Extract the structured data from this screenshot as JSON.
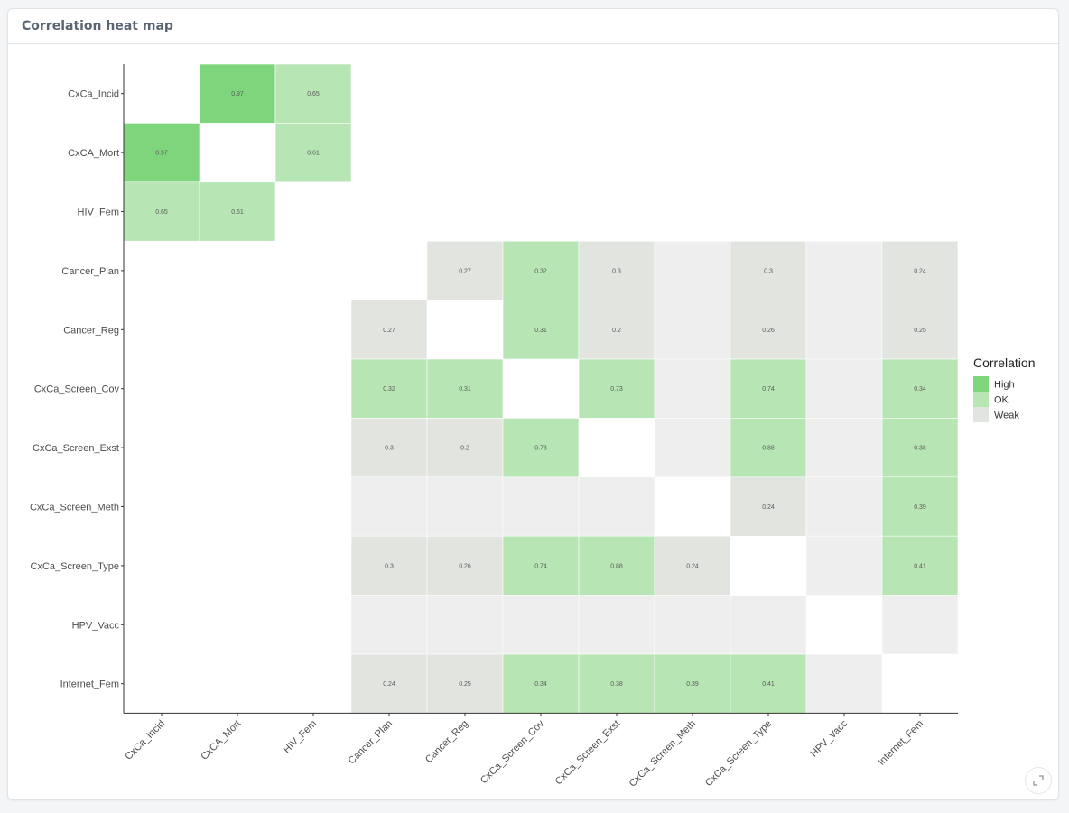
{
  "card": {
    "title": "Correlation heat map"
  },
  "chart_data": {
    "type": "heatmap",
    "variables": [
      "CxCa_Incid",
      "CxCA_Mort",
      "HIV_Fem",
      "Cancer_Plan",
      "Cancer_Reg",
      "CxCa_Screen_Cov",
      "CxCa_Screen_Exst",
      "CxCa_Screen_Meth",
      "CxCa_Screen_Type",
      "HPV_Vacc",
      "Internet_Fem"
    ],
    "legend": {
      "title": "Correlation",
      "position": "right",
      "levels": [
        {
          "label": "High",
          "color": "#7fd57c"
        },
        {
          "label": "OK",
          "color": "#b7e6b4"
        },
        {
          "label": "Weak",
          "color": "#e2e4e0"
        }
      ],
      "unlabeled_color": "#eeeeee"
    },
    "cells": [
      {
        "row": "CxCa_Incid",
        "col": "CxCA_Mort",
        "value": 0.97,
        "level": "High"
      },
      {
        "row": "CxCa_Incid",
        "col": "HIV_Fem",
        "value": 0.65,
        "level": "OK"
      },
      {
        "row": "CxCA_Mort",
        "col": "CxCa_Incid",
        "value": 0.97,
        "level": "High"
      },
      {
        "row": "CxCA_Mort",
        "col": "HIV_Fem",
        "value": 0.61,
        "level": "OK"
      },
      {
        "row": "HIV_Fem",
        "col": "CxCa_Incid",
        "value": 0.65,
        "level": "OK"
      },
      {
        "row": "HIV_Fem",
        "col": "CxCA_Mort",
        "value": 0.61,
        "level": "OK"
      },
      {
        "row": "Cancer_Plan",
        "col": "Cancer_Reg",
        "value": 0.27,
        "level": "Weak"
      },
      {
        "row": "Cancer_Plan",
        "col": "CxCa_Screen_Cov",
        "value": 0.32,
        "level": "OK"
      },
      {
        "row": "Cancer_Plan",
        "col": "CxCa_Screen_Exst",
        "value": 0.3,
        "level": "Weak"
      },
      {
        "row": "Cancer_Plan",
        "col": "CxCa_Screen_Meth",
        "value": null,
        "level": null
      },
      {
        "row": "Cancer_Plan",
        "col": "CxCa_Screen_Type",
        "value": 0.3,
        "level": "Weak"
      },
      {
        "row": "Cancer_Plan",
        "col": "HPV_Vacc",
        "value": null,
        "level": null
      },
      {
        "row": "Cancer_Plan",
        "col": "Internet_Fem",
        "value": 0.24,
        "level": "Weak"
      },
      {
        "row": "Cancer_Reg",
        "col": "Cancer_Plan",
        "value": 0.27,
        "level": "Weak"
      },
      {
        "row": "Cancer_Reg",
        "col": "CxCa_Screen_Cov",
        "value": 0.31,
        "level": "OK"
      },
      {
        "row": "Cancer_Reg",
        "col": "CxCa_Screen_Exst",
        "value": 0.2,
        "level": "Weak"
      },
      {
        "row": "Cancer_Reg",
        "col": "CxCa_Screen_Meth",
        "value": null,
        "level": null
      },
      {
        "row": "Cancer_Reg",
        "col": "CxCa_Screen_Type",
        "value": 0.26,
        "level": "Weak"
      },
      {
        "row": "Cancer_Reg",
        "col": "HPV_Vacc",
        "value": null,
        "level": null
      },
      {
        "row": "Cancer_Reg",
        "col": "Internet_Fem",
        "value": 0.25,
        "level": "Weak"
      },
      {
        "row": "CxCa_Screen_Cov",
        "col": "Cancer_Plan",
        "value": 0.32,
        "level": "OK"
      },
      {
        "row": "CxCa_Screen_Cov",
        "col": "Cancer_Reg",
        "value": 0.31,
        "level": "OK"
      },
      {
        "row": "CxCa_Screen_Cov",
        "col": "CxCa_Screen_Exst",
        "value": 0.73,
        "level": "OK"
      },
      {
        "row": "CxCa_Screen_Cov",
        "col": "CxCa_Screen_Meth",
        "value": null,
        "level": null
      },
      {
        "row": "CxCa_Screen_Cov",
        "col": "CxCa_Screen_Type",
        "value": 0.74,
        "level": "OK"
      },
      {
        "row": "CxCa_Screen_Cov",
        "col": "HPV_Vacc",
        "value": null,
        "level": null
      },
      {
        "row": "CxCa_Screen_Cov",
        "col": "Internet_Fem",
        "value": 0.34,
        "level": "OK"
      },
      {
        "row": "CxCa_Screen_Exst",
        "col": "Cancer_Plan",
        "value": 0.3,
        "level": "Weak"
      },
      {
        "row": "CxCa_Screen_Exst",
        "col": "Cancer_Reg",
        "value": 0.2,
        "level": "Weak"
      },
      {
        "row": "CxCa_Screen_Exst",
        "col": "CxCa_Screen_Cov",
        "value": 0.73,
        "level": "OK"
      },
      {
        "row": "CxCa_Screen_Exst",
        "col": "CxCa_Screen_Meth",
        "value": null,
        "level": null
      },
      {
        "row": "CxCa_Screen_Exst",
        "col": "CxCa_Screen_Type",
        "value": 0.88,
        "level": "OK"
      },
      {
        "row": "CxCa_Screen_Exst",
        "col": "HPV_Vacc",
        "value": null,
        "level": null
      },
      {
        "row": "CxCa_Screen_Exst",
        "col": "Internet_Fem",
        "value": 0.38,
        "level": "OK"
      },
      {
        "row": "CxCa_Screen_Meth",
        "col": "Cancer_Plan",
        "value": null,
        "level": null
      },
      {
        "row": "CxCa_Screen_Meth",
        "col": "Cancer_Reg",
        "value": null,
        "level": null
      },
      {
        "row": "CxCa_Screen_Meth",
        "col": "CxCa_Screen_Cov",
        "value": null,
        "level": null
      },
      {
        "row": "CxCa_Screen_Meth",
        "col": "CxCa_Screen_Exst",
        "value": null,
        "level": null
      },
      {
        "row": "CxCa_Screen_Meth",
        "col": "CxCa_Screen_Type",
        "value": 0.24,
        "level": "Weak"
      },
      {
        "row": "CxCa_Screen_Meth",
        "col": "HPV_Vacc",
        "value": null,
        "level": null
      },
      {
        "row": "CxCa_Screen_Meth",
        "col": "Internet_Fem",
        "value": 0.39,
        "level": "OK"
      },
      {
        "row": "CxCa_Screen_Type",
        "col": "Cancer_Plan",
        "value": 0.3,
        "level": "Weak"
      },
      {
        "row": "CxCa_Screen_Type",
        "col": "Cancer_Reg",
        "value": 0.26,
        "level": "Weak"
      },
      {
        "row": "CxCa_Screen_Type",
        "col": "CxCa_Screen_Cov",
        "value": 0.74,
        "level": "OK"
      },
      {
        "row": "CxCa_Screen_Type",
        "col": "CxCa_Screen_Exst",
        "value": 0.88,
        "level": "OK"
      },
      {
        "row": "CxCa_Screen_Type",
        "col": "CxCa_Screen_Meth",
        "value": 0.24,
        "level": "Weak"
      },
      {
        "row": "CxCa_Screen_Type",
        "col": "HPV_Vacc",
        "value": null,
        "level": null
      },
      {
        "row": "CxCa_Screen_Type",
        "col": "Internet_Fem",
        "value": 0.41,
        "level": "OK"
      },
      {
        "row": "HPV_Vacc",
        "col": "Cancer_Plan",
        "value": null,
        "level": null
      },
      {
        "row": "HPV_Vacc",
        "col": "Cancer_Reg",
        "value": null,
        "level": null
      },
      {
        "row": "HPV_Vacc",
        "col": "CxCa_Screen_Cov",
        "value": null,
        "level": null
      },
      {
        "row": "HPV_Vacc",
        "col": "CxCa_Screen_Exst",
        "value": null,
        "level": null
      },
      {
        "row": "HPV_Vacc",
        "col": "CxCa_Screen_Meth",
        "value": null,
        "level": null
      },
      {
        "row": "HPV_Vacc",
        "col": "CxCa_Screen_Type",
        "value": null,
        "level": null
      },
      {
        "row": "HPV_Vacc",
        "col": "Internet_Fem",
        "value": null,
        "level": null
      },
      {
        "row": "Internet_Fem",
        "col": "Cancer_Plan",
        "value": 0.24,
        "level": "Weak"
      },
      {
        "row": "Internet_Fem",
        "col": "Cancer_Reg",
        "value": 0.25,
        "level": "Weak"
      },
      {
        "row": "Internet_Fem",
        "col": "CxCa_Screen_Cov",
        "value": 0.34,
        "level": "OK"
      },
      {
        "row": "Internet_Fem",
        "col": "CxCa_Screen_Exst",
        "value": 0.38,
        "level": "OK"
      },
      {
        "row": "Internet_Fem",
        "col": "CxCa_Screen_Meth",
        "value": 0.39,
        "level": "OK"
      },
      {
        "row": "Internet_Fem",
        "col": "CxCa_Screen_Type",
        "value": 0.41,
        "level": "OK"
      },
      {
        "row": "Internet_Fem",
        "col": "HPV_Vacc",
        "value": null,
        "level": null
      }
    ]
  }
}
